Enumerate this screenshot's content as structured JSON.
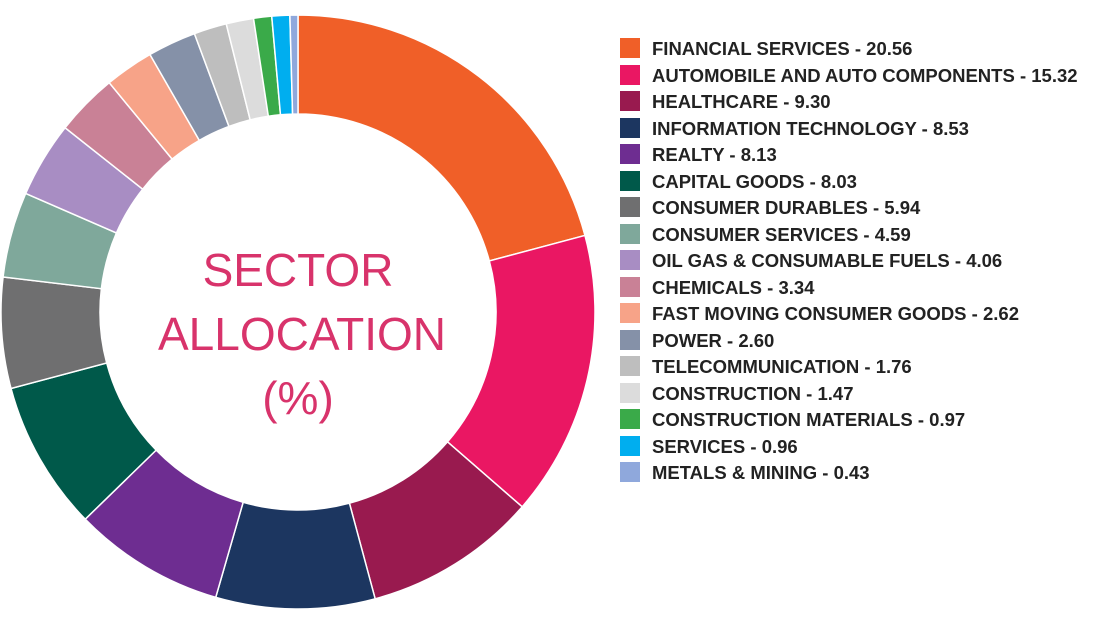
{
  "chart_data": {
    "type": "donut",
    "title": "SECTOR ALLOCATION (%)",
    "categories": [
      "FINANCIAL SERVICES",
      "AUTOMOBILE AND AUTO COMPONENTS",
      "HEALTHCARE",
      "INFORMATION TECHNOLOGY",
      "REALTY",
      "CAPITAL GOODS",
      "CONSUMER DURABLES",
      "CONSUMER SERVICES",
      "OIL GAS & CONSUMABLE FUELS",
      "CHEMICALS",
      "FAST MOVING CONSUMER GOODS",
      "POWER",
      "TELECOMMUNICATION",
      "CONSTRUCTION",
      "CONSTRUCTION MATERIALS",
      "SERVICES",
      "METALS & MINING"
    ],
    "values": [
      20.56,
      15.32,
      9.3,
      8.53,
      8.13,
      8.03,
      5.94,
      4.59,
      4.06,
      3.34,
      2.62,
      2.6,
      1.76,
      1.47,
      0.97,
      0.96,
      0.43
    ],
    "value_labels": [
      "20.56",
      "15.32",
      "9.30",
      "8.53",
      "8.13",
      "8.03",
      "5.94",
      "4.59",
      "4.06",
      "3.34",
      "2.62",
      "2.60",
      "1.76",
      "1.47",
      "0.97",
      "0.96",
      "0.43"
    ],
    "colors": [
      "#f05f28",
      "#ea1763",
      "#991a4f",
      "#1c3660",
      "#6e2d91",
      "#00594a",
      "#6f6f70",
      "#7fa89b",
      "#a88dc3",
      "#c98196",
      "#f7a388",
      "#8591a8",
      "#bebebe",
      "#dcdcdc",
      "#3aaa49",
      "#00aeef",
      "#8fa8dc"
    ]
  }
}
